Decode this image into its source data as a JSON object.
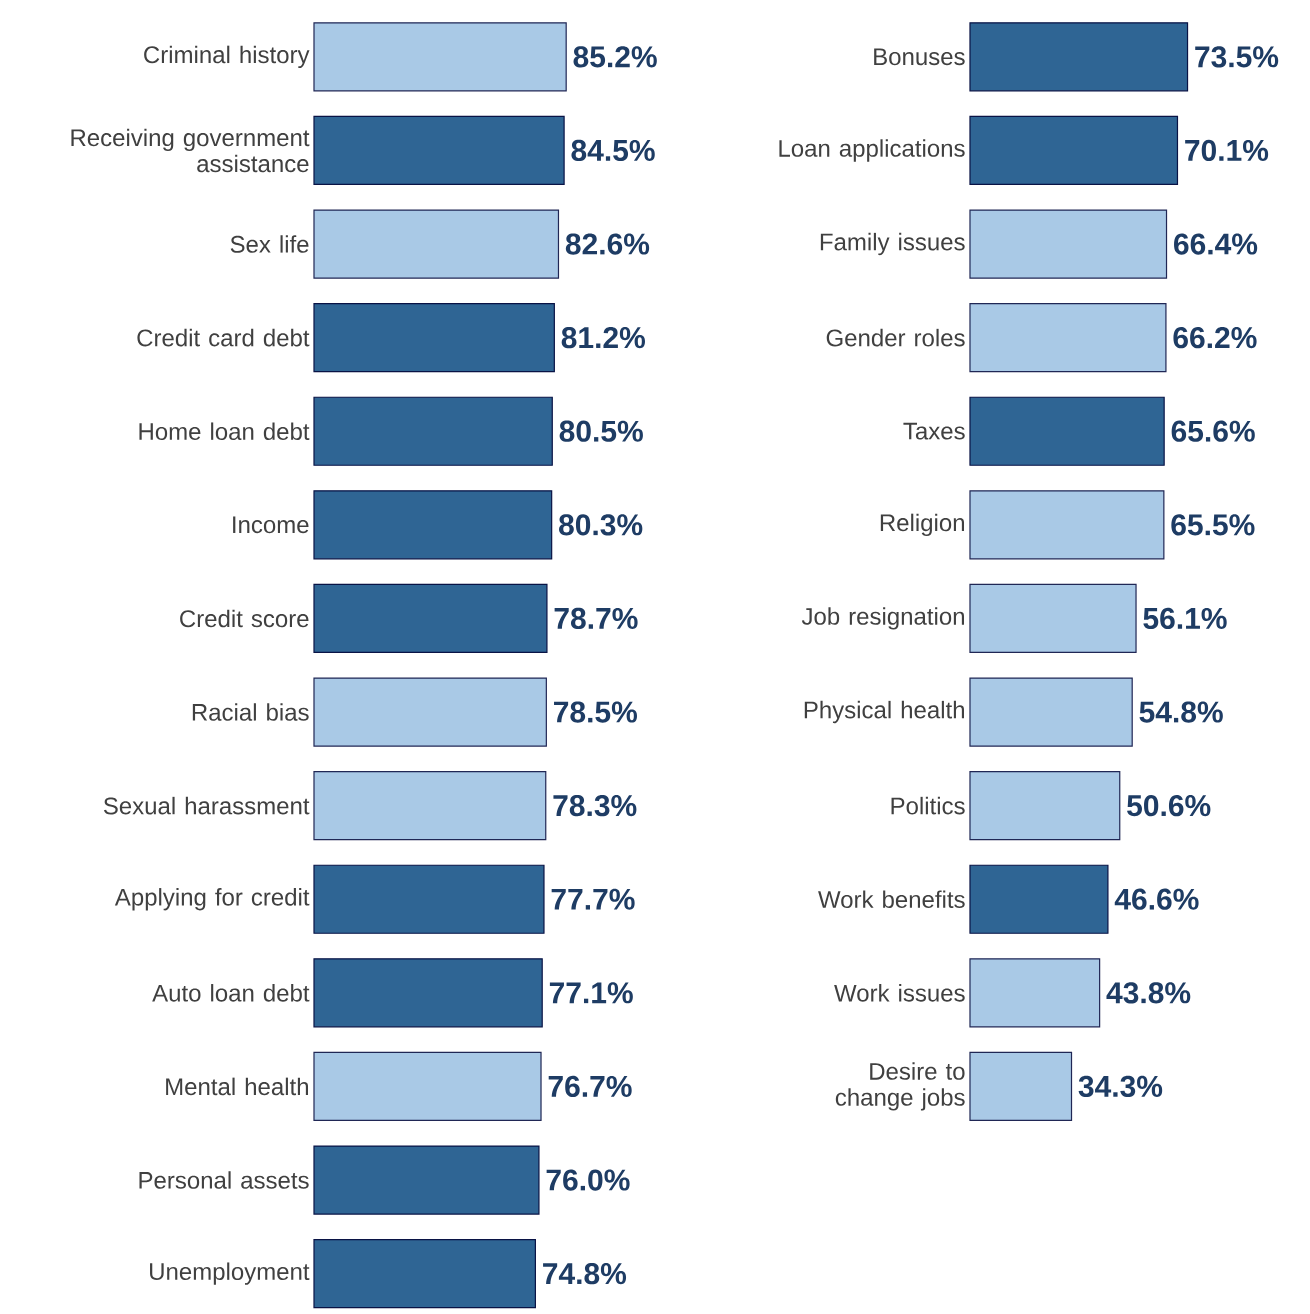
{
  "chart_data": [
    {
      "type": "bar",
      "orientation": "horizontal",
      "categories": [
        "Criminal history",
        "Receiving government assistance",
        "Sex life",
        "Credit card debt",
        "Home loan debt",
        "Income",
        "Credit score",
        "Racial bias",
        "Sexual harassment",
        "Applying for credit",
        "Auto loan debt",
        "Mental health",
        "Personal assets",
        "Unemployment"
      ],
      "values": [
        85.2,
        84.5,
        82.6,
        81.2,
        80.5,
        80.3,
        78.7,
        78.5,
        78.3,
        77.7,
        77.1,
        76.7,
        76.0,
        74.8
      ],
      "value_labels": [
        "85.2%",
        "84.5%",
        "82.6%",
        "81.2%",
        "80.5%",
        "80.3%",
        "78.7%",
        "78.5%",
        "78.3%",
        "77.7%",
        "77.1%",
        "76.7%",
        "76.0%",
        "74.8%"
      ],
      "colors": [
        "#a9c9e6",
        "#2f6594",
        "#a9c9e6",
        "#2f6594",
        "#2f6594",
        "#2f6594",
        "#2f6594",
        "#a9c9e6",
        "#a9c9e6",
        "#2f6594",
        "#2f6594",
        "#a9c9e6",
        "#2f6594",
        "#2f6594"
      ]
    },
    {
      "type": "bar",
      "orientation": "horizontal",
      "categories": [
        "Bonuses",
        "Loan applications",
        "Family issues",
        "Gender roles",
        "Taxes",
        "Religion",
        "Job resignation",
        "Physical health",
        "Politics",
        "Work benefits",
        "Work issues",
        "Desire to change jobs"
      ],
      "values": [
        73.5,
        70.1,
        66.4,
        66.2,
        65.6,
        65.5,
        56.1,
        54.8,
        50.6,
        46.6,
        43.8,
        34.3
      ],
      "value_labels": [
        "73.5%",
        "70.1%",
        "66.4%",
        "66.2%",
        "65.6%",
        "65.5%",
        "56.1%",
        "54.8%",
        "50.6%",
        "46.6%",
        "43.8%",
        "34.3%"
      ],
      "colors": [
        "#2f6594",
        "#2f6594",
        "#a9c9e6",
        "#a9c9e6",
        "#2f6594",
        "#a9c9e6",
        "#a9c9e6",
        "#a9c9e6",
        "#a9c9e6",
        "#2f6594",
        "#a9c9e6",
        "#a9c9e6"
      ]
    }
  ]
}
